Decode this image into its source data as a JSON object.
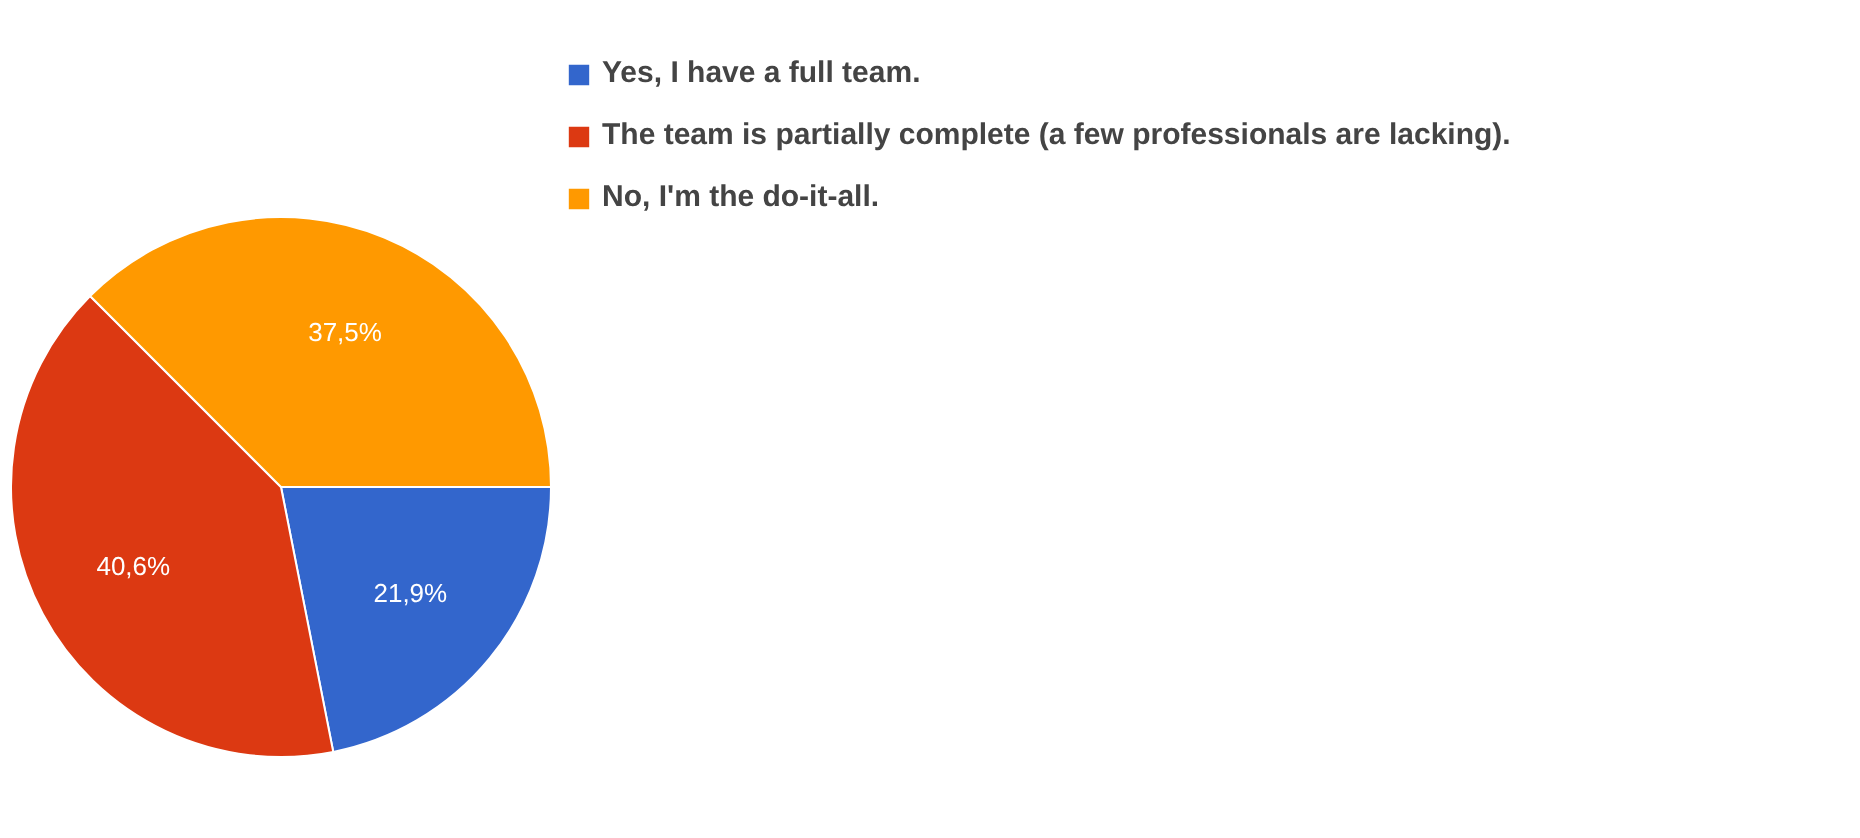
{
  "chart_data": {
    "type": "pie",
    "categories": [
      "Yes, I have a full team.",
      "The team is partially complete (a few professionals are lacking).",
      "No, I'm the do-it-all."
    ],
    "values": [
      21.9,
      40.6,
      37.5
    ],
    "colors": [
      "#3366cc",
      "#dc3912",
      "#ff9900"
    ],
    "value_labels": [
      "21,9%",
      "40,6%",
      "37,5%"
    ],
    "legend": "right"
  }
}
